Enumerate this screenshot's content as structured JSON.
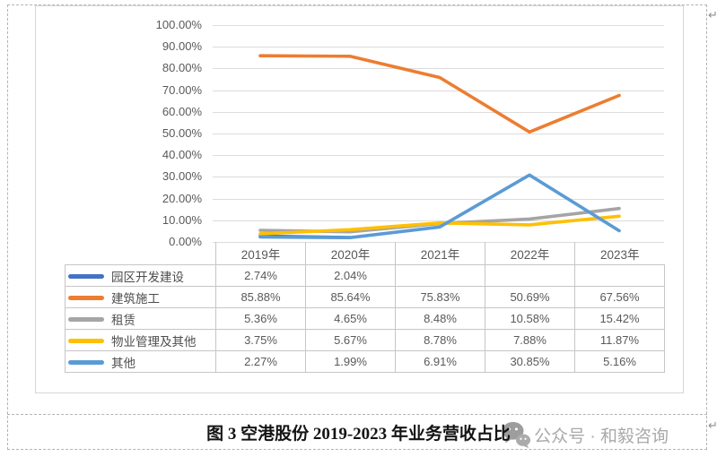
{
  "window": {
    "paragraph_mark": "↵"
  },
  "chart_data": {
    "type": "line",
    "title": "图 3 空港股份 2019-2023 年业务营收占比",
    "categories": [
      "2019年",
      "2020年",
      "2021年",
      "2022年",
      "2023年"
    ],
    "y_ticks": [
      "100.00%",
      "90.00%",
      "80.00%",
      "70.00%",
      "60.00%",
      "50.00%",
      "40.00%",
      "30.00%",
      "20.00%",
      "10.00%",
      "0.00%"
    ],
    "ylim": [
      0,
      100
    ],
    "grid": true,
    "legend_position": "data-table-left",
    "series": [
      {
        "name": "园区开发建设",
        "color": "#4472C4",
        "values": [
          2.74,
          2.04,
          null,
          null,
          null
        ],
        "display": [
          "2.74%",
          "2.04%",
          "",
          "",
          ""
        ]
      },
      {
        "name": "建筑施工",
        "color": "#ED7D31",
        "values": [
          85.88,
          85.64,
          75.83,
          50.69,
          67.56
        ],
        "display": [
          "85.88%",
          "85.64%",
          "75.83%",
          "50.69%",
          "67.56%"
        ]
      },
      {
        "name": "租赁",
        "color": "#A5A5A5",
        "values": [
          5.36,
          4.65,
          8.48,
          10.58,
          15.42
        ],
        "display": [
          "5.36%",
          "4.65%",
          "8.48%",
          "10.58%",
          "15.42%"
        ]
      },
      {
        "name": "物业管理及其他",
        "color": "#FFC000",
        "values": [
          3.75,
          5.67,
          8.78,
          7.88,
          11.87
        ],
        "display": [
          "3.75%",
          "5.67%",
          "8.78%",
          "7.88%",
          "11.87%"
        ]
      },
      {
        "name": "其他",
        "color": "#5B9BD5",
        "values": [
          2.27,
          1.99,
          6.91,
          30.85,
          5.16
        ],
        "display": [
          "2.27%",
          "1.99%",
          "6.91%",
          "30.85%",
          "5.16%"
        ]
      }
    ]
  },
  "caption": {
    "text": "图 3 空港股份 2019-2023 年业务营收占比"
  },
  "watermark": {
    "icon": "wechat-icon",
    "text": "公众号 · 和毅咨询"
  }
}
